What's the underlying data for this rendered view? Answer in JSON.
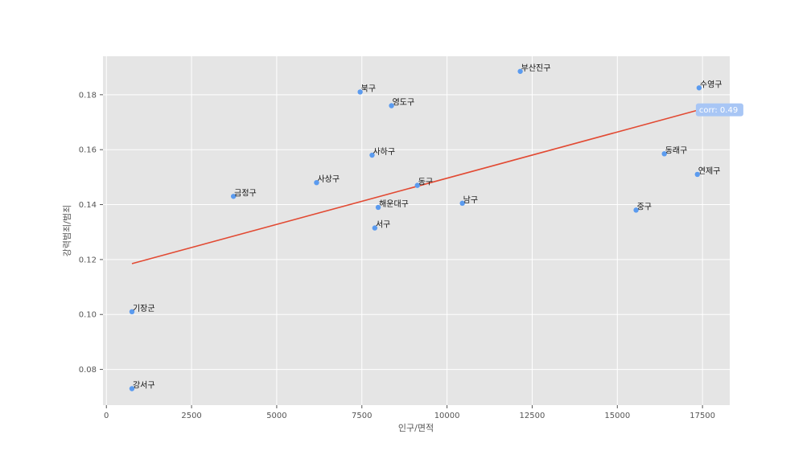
{
  "chart_data": {
    "type": "scatter",
    "title": "",
    "xlabel": "인구/면적",
    "ylabel": "강력범죄/범죄",
    "xlim": [
      -100,
      18300
    ],
    "ylim": [
      0.067,
      0.194
    ],
    "xticks": [
      0,
      2500,
      5000,
      7500,
      10000,
      12500,
      15000,
      17500
    ],
    "xtick_labels": [
      "0",
      "2500",
      "5000",
      "7500",
      "10000",
      "12500",
      "15000",
      "17500"
    ],
    "yticks": [
      0.08,
      0.1,
      0.12,
      0.14,
      0.16,
      0.18
    ],
    "ytick_labels": [
      "0.08",
      "0.10",
      "0.12",
      "0.14",
      "0.16",
      "0.18"
    ],
    "grid": true,
    "background": "#e5e5e5",
    "point_color": "#5b9bef",
    "line_color": "#e24a33",
    "annotation_color": "#a8c6f5",
    "points": [
      {
        "label": "부산진구",
        "x": 12150,
        "y": 0.1885
      },
      {
        "label": "수영구",
        "x": 17400,
        "y": 0.1825
      },
      {
        "label": "북구",
        "x": 7450,
        "y": 0.181
      },
      {
        "label": "영도구",
        "x": 8370,
        "y": 0.176
      },
      {
        "label": "동래구",
        "x": 16380,
        "y": 0.1585
      },
      {
        "label": "사하구",
        "x": 7800,
        "y": 0.158
      },
      {
        "label": "연제구",
        "x": 17350,
        "y": 0.151
      },
      {
        "label": "사상구",
        "x": 6170,
        "y": 0.148
      },
      {
        "label": "동구",
        "x": 9130,
        "y": 0.147
      },
      {
        "label": "금정구",
        "x": 3730,
        "y": 0.143
      },
      {
        "label": "남구",
        "x": 10450,
        "y": 0.1405
      },
      {
        "label": "해운대구",
        "x": 7980,
        "y": 0.139
      },
      {
        "label": "중구",
        "x": 15550,
        "y": 0.138
      },
      {
        "label": "서구",
        "x": 7880,
        "y": 0.1315
      },
      {
        "label": "기장군",
        "x": 750,
        "y": 0.101
      },
      {
        "label": "강서구",
        "x": 750,
        "y": 0.073
      }
    ],
    "trend_line": {
      "x": [
        750,
        17400
      ],
      "y": [
        0.1185,
        0.1745
      ]
    },
    "annotation": {
      "text": "corr: 0.49",
      "x": 17400,
      "y": 0.1745
    }
  }
}
